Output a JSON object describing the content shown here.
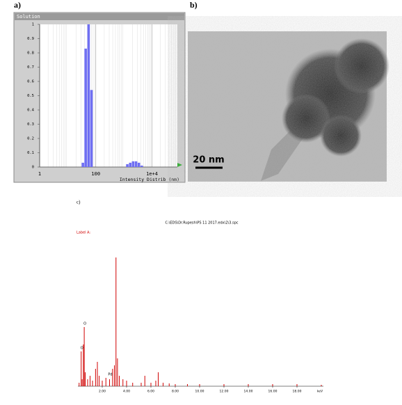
{
  "panel_labels": [
    "a)",
    "b)",
    "c)"
  ],
  "tem_image": {
    "scale_bar": "20 nm"
  },
  "chart_data": [
    {
      "type": "bar",
      "header": "Solution",
      "x_label": "Intensity Distrib (nm)",
      "x": [
        35,
        44,
        56,
        71,
        1340,
        1700,
        2150,
        2730,
        3460,
        4380
      ],
      "values": [
        0.03,
        0.83,
        1.0,
        0.54,
        0.02,
        0.03,
        0.04,
        0.04,
        0.03,
        0.01
      ],
      "color": "#6f6ff2",
      "xlog": true,
      "xlim": [
        1,
        80000
      ],
      "xticks": [
        1,
        100,
        {
          "value": 10000,
          "label": "1e+4"
        }
      ],
      "ylim": [
        0,
        1
      ],
      "yticks": [
        0,
        0.1,
        0.2,
        0.3,
        0.4,
        0.5,
        0.6,
        0.7,
        0.8,
        0.9,
        1
      ],
      "grid": true
    },
    {
      "type": "line",
      "title": "C:\\EDS\\Dr.Rupesh\\PS 11 2017.edx\\2\\3.spc",
      "label": "Label A:",
      "x": [
        0.1,
        0.27,
        0.35,
        0.45,
        0.52,
        0.6,
        0.8,
        1.0,
        1.2,
        1.45,
        1.6,
        1.75,
        2.0,
        2.3,
        2.6,
        2.85,
        3.0,
        3.13,
        3.25,
        3.4,
        3.7,
        4.0,
        4.5,
        5.2,
        5.5,
        6.0,
        6.4,
        6.6,
        7.0,
        7.5,
        8.0,
        9,
        10,
        12,
        14,
        16,
        18,
        20
      ],
      "values": [
        5,
        50,
        10,
        60,
        85,
        20,
        10,
        15,
        8,
        25,
        35,
        15,
        8,
        12,
        10,
        25,
        30,
        185,
        40,
        15,
        10,
        8,
        5,
        5,
        15,
        5,
        8,
        20,
        5,
        4,
        3,
        3,
        3,
        3,
        3,
        3,
        3,
        2
      ],
      "color": "#d00000",
      "annotations": [
        "O",
        "O",
        "Pd"
      ],
      "xlim": [
        0,
        20.4
      ],
      "ylim": [
        0,
        200
      ],
      "xticks": [
        {
          "value": 2,
          "label": "2.00"
        },
        {
          "value": 4,
          "label": "4.00"
        },
        {
          "value": 6,
          "label": "6.00"
        },
        {
          "value": 8,
          "label": "8.00"
        },
        {
          "value": 10,
          "label": "10.00"
        },
        {
          "value": 12,
          "label": "12.00"
        },
        {
          "value": 14,
          "label": "14.00"
        },
        {
          "value": 16,
          "label": "16.00"
        },
        {
          "value": 18,
          "label": "18.00"
        }
      ],
      "x_unit": "keV"
    }
  ]
}
